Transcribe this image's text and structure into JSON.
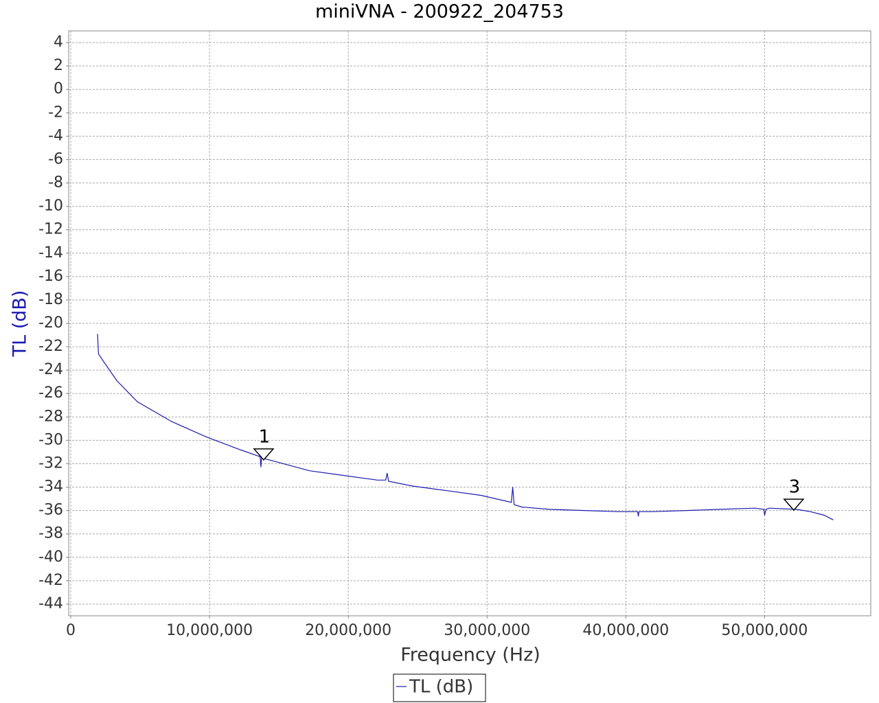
{
  "chart_data": {
    "type": "line",
    "title": "miniVNA - 200922_204753",
    "x_label": "Frequency (Hz)",
    "y_label": "TL (dB)",
    "xlim": [
      -150000,
      57650000
    ],
    "ylim": [
      -45,
      5
    ],
    "xticks": [
      0,
      {
        "value": 10000000,
        "label": "10,000,000"
      },
      {
        "value": 20000000,
        "label": "20,000,000"
      },
      {
        "value": 30000000,
        "label": "30,000,000"
      },
      {
        "value": 40000000,
        "label": "40,000,000"
      },
      {
        "value": 50000000,
        "label": "50,000,000"
      }
    ],
    "yticks": [
      4,
      2,
      0,
      -2,
      -4,
      -6,
      -8,
      -10,
      -12,
      -14,
      -16,
      -18,
      -20,
      -22,
      -24,
      -26,
      -28,
      -30,
      -32,
      -34,
      -36,
      -38,
      -40,
      -42,
      -44
    ],
    "grid": true,
    "x": [
      1930000,
      2000000,
      2330000,
      3320000,
      4800000,
      7280000,
      9750000,
      12200000,
      13650000,
      13700000,
      13750000,
      14700000,
      17200000,
      19650000,
      22100000,
      22700000,
      22800000,
      22900000,
      24600000,
      27100000,
      29550000,
      31750000,
      31850000,
      31950000,
      32500000,
      34500000,
      37000000,
      39450000,
      40850000,
      40900000,
      40950000,
      41900000,
      44400000,
      46800000,
      49300000,
      49950000,
      50000000,
      50100000,
      50350000,
      52300000,
      53300000,
      54300000,
      54950000
    ],
    "series": [
      {
        "name": "TL (dB)",
        "color": "#1a1ab0",
        "values": [
          -20.9,
          -22.6,
          -23.2,
          -24.9,
          -26.7,
          -28.4,
          -29.7,
          -30.8,
          -31.4,
          -32.3,
          -31.5,
          -31.8,
          -32.6,
          -33.0,
          -33.4,
          -33.4,
          -32.8,
          -33.5,
          -33.9,
          -34.3,
          -34.7,
          -35.3,
          -34.0,
          -35.5,
          -35.7,
          -35.9,
          -36.0,
          -36.1,
          -36.1,
          -36.5,
          -36.1,
          -36.1,
          -36.0,
          -35.9,
          -35.8,
          -35.9,
          -36.4,
          -35.9,
          -35.8,
          -35.9,
          -36.1,
          -36.4,
          -36.8
        ]
      }
    ],
    "markers": [
      {
        "label": "1",
        "x": 13900000,
        "y": -31.2
      },
      {
        "label": "3",
        "x": 52100000,
        "y": -35.5
      }
    ]
  }
}
